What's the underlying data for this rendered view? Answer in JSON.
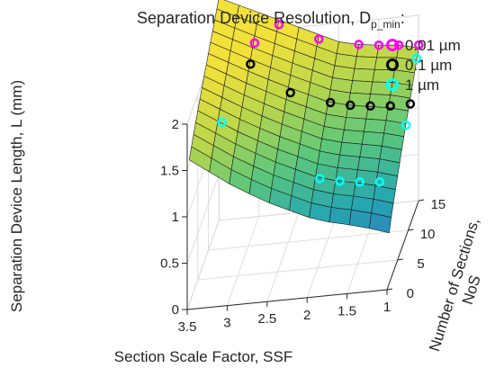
{
  "chart_data": {
    "type": "surface3d",
    "title_main": "Separation Device Resolution, D",
    "title_sub": "p_min",
    "title_suffix": ":",
    "x_axis": {
      "label": "Section Scale Factor, SSF",
      "range": [
        1,
        3.5
      ],
      "reversed": true,
      "ticks": [
        1,
        1.5,
        2,
        2.5,
        3,
        3.5
      ],
      "tick_labels": [
        "1",
        "1.5",
        "2",
        "2.5",
        "3",
        "3.5"
      ]
    },
    "y_axis": {
      "label": "Number of Sections, NoS",
      "label_line1": "Number of Sections,",
      "label_line2": "NoS",
      "range": [
        0,
        15
      ],
      "ticks": [
        0,
        5,
        10,
        15
      ],
      "tick_labels": [
        "0",
        "5",
        "10",
        "15"
      ]
    },
    "z_axis": {
      "label": "Separation Device Length, L (mm)",
      "range": [
        0,
        2
      ],
      "ticks": [
        0,
        0.5,
        1,
        1.5,
        2
      ],
      "tick_labels": [
        "0",
        "0.5",
        "1",
        "1.5",
        "2"
      ]
    },
    "grid": true,
    "colormap": [
      "#3e2a8f",
      "#2e6fc4",
      "#26a8b0",
      "#5cc77a",
      "#b8d64b",
      "#f2e13a"
    ],
    "surface": {
      "ssf": [
        1,
        1.25,
        1.5,
        1.75,
        2,
        2.25,
        2.5,
        2.75,
        3,
        3.25,
        3.5
      ],
      "nos": [
        1,
        2,
        3,
        4,
        5,
        6,
        7,
        8,
        9,
        10,
        11,
        12,
        13,
        14,
        15
      ],
      "min_length_by_ssf": [
        0.55,
        0.62,
        0.68,
        0.73,
        0.8,
        0.9,
        1.0,
        1.12,
        1.25,
        1.4,
        1.55
      ],
      "max_length_by_ssf": [
        1.65,
        1.7,
        1.72,
        1.75,
        1.8,
        1.9,
        2.0,
        2.1,
        2.2,
        2.3,
        2.4
      ]
    },
    "legend": {
      "placement": "top-right",
      "entries": [
        {
          "label": "0.01 µm",
          "color": "#ff00ff"
        },
        {
          "label": "0.1 µm",
          "color": "#000000"
        },
        {
          "label": "1 µm",
          "color": "#00ffff"
        }
      ]
    },
    "series": [
      {
        "name": "0.01 µm",
        "color": "#ff00ff",
        "points": [
          {
            "ssf": 3.0,
            "nos": 13,
            "length": 2.0
          },
          {
            "ssf": 2.75,
            "nos": 15,
            "length": 2.05
          },
          {
            "ssf": 2.25,
            "nos": 15,
            "length": 1.85
          },
          {
            "ssf": 1.75,
            "nos": 15,
            "length": 1.75
          },
          {
            "ssf": 1.5,
            "nos": 15,
            "length": 1.72
          },
          {
            "ssf": 1.25,
            "nos": 15,
            "length": 1.7
          },
          {
            "ssf": 1.0,
            "nos": 15,
            "length": 1.68
          }
        ]
      },
      {
        "name": "0.1 µm",
        "color": "#000000",
        "points": [
          {
            "ssf": 3.0,
            "nos": 11,
            "length": 1.9
          },
          {
            "ssf": 2.5,
            "nos": 11,
            "length": 1.55
          },
          {
            "ssf": 2.0,
            "nos": 11,
            "length": 1.4
          },
          {
            "ssf": 1.75,
            "nos": 11,
            "length": 1.35
          },
          {
            "ssf": 1.5,
            "nos": 11,
            "length": 1.32
          },
          {
            "ssf": 1.25,
            "nos": 11,
            "length": 1.3
          },
          {
            "ssf": 1.0,
            "nos": 11,
            "length": 1.3
          }
        ]
      },
      {
        "name": "1 µm",
        "color": "#00ffff",
        "points": [
          {
            "ssf": 3.25,
            "nos": 7,
            "length": 1.55
          },
          {
            "ssf": 2.0,
            "nos": 6,
            "length": 0.9
          },
          {
            "ssf": 1.75,
            "nos": 6,
            "length": 0.85
          },
          {
            "ssf": 1.5,
            "nos": 6,
            "length": 0.82
          },
          {
            "ssf": 1.25,
            "nos": 6,
            "length": 0.8
          },
          {
            "ssf": 1.0,
            "nos": 9,
            "length": 1.2
          },
          {
            "ssf": 1.0,
            "nos": 14,
            "length": 1.6
          }
        ]
      }
    ]
  }
}
